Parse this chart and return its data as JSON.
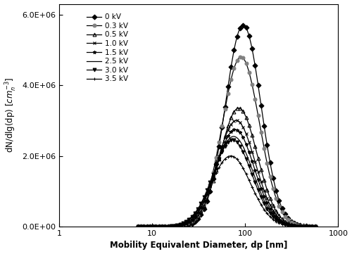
{
  "series": [
    {
      "label": "0 kV",
      "marker": "D",
      "peak": 5700000.0,
      "peak_dp": 95,
      "sigma": 0.44,
      "mfc": "black",
      "mec": "black",
      "ms": 3.5
    },
    {
      "label": "0.3 kV",
      "marker": "o",
      "peak": 4800000.0,
      "peak_dp": 90,
      "sigma": 0.46,
      "mfc": "gray",
      "mec": "gray",
      "ms": 3.5
    },
    {
      "label": "0.5 kV",
      "marker": "^",
      "peak": 3350000.0,
      "peak_dp": 85,
      "sigma": 0.46,
      "mfc": "none",
      "mec": "black",
      "ms": 3.5
    },
    {
      "label": "1.0 kV",
      "marker": "x",
      "peak": 3000000.0,
      "peak_dp": 80,
      "sigma": 0.47,
      "mfc": "black",
      "mec": "black",
      "ms": 3.5
    },
    {
      "label": "1.5 kV",
      "marker": "*",
      "peak": 2750000.0,
      "peak_dp": 78,
      "sigma": 0.47,
      "mfc": "black",
      "mec": "black",
      "ms": 3.5
    },
    {
      "label": "2.5 kV",
      "marker": "None",
      "peak": 2550000.0,
      "peak_dp": 75,
      "sigma": 0.48,
      "mfc": "none",
      "mec": "black",
      "ms": 0
    },
    {
      "label": "3.0 kV",
      "marker": "v",
      "peak": 2450000.0,
      "peak_dp": 73,
      "sigma": 0.48,
      "mfc": "black",
      "mec": "black",
      "ms": 3.5
    },
    {
      "label": "3.5 kV",
      "marker": "+",
      "peak": 2000000.0,
      "peak_dp": 70,
      "sigma": 0.49,
      "mfc": "black",
      "mec": "black",
      "ms": 3.5
    }
  ],
  "xlabel": "Mobility Equivalent Diameter, dp [nm]",
  "ylabel": "dN/dlg(dp) [$cm_n^{-3}$]",
  "xlim": [
    1,
    1000
  ],
  "ylim": [
    0,
    6300000.0
  ],
  "yticks": [
    0,
    2000000.0,
    4000000.0,
    6000000.0
  ],
  "ytick_labels": [
    "0.0E+00",
    "2.0E+06",
    "4.0E+06",
    "6.0E+06"
  ],
  "xticks": [
    1,
    10,
    100,
    1000
  ],
  "background": "#ffffff",
  "line_color": "#000000",
  "linewidth": 0.9,
  "markevery": 5,
  "dp_min": 7,
  "dp_max": 600,
  "dp_points": 300
}
